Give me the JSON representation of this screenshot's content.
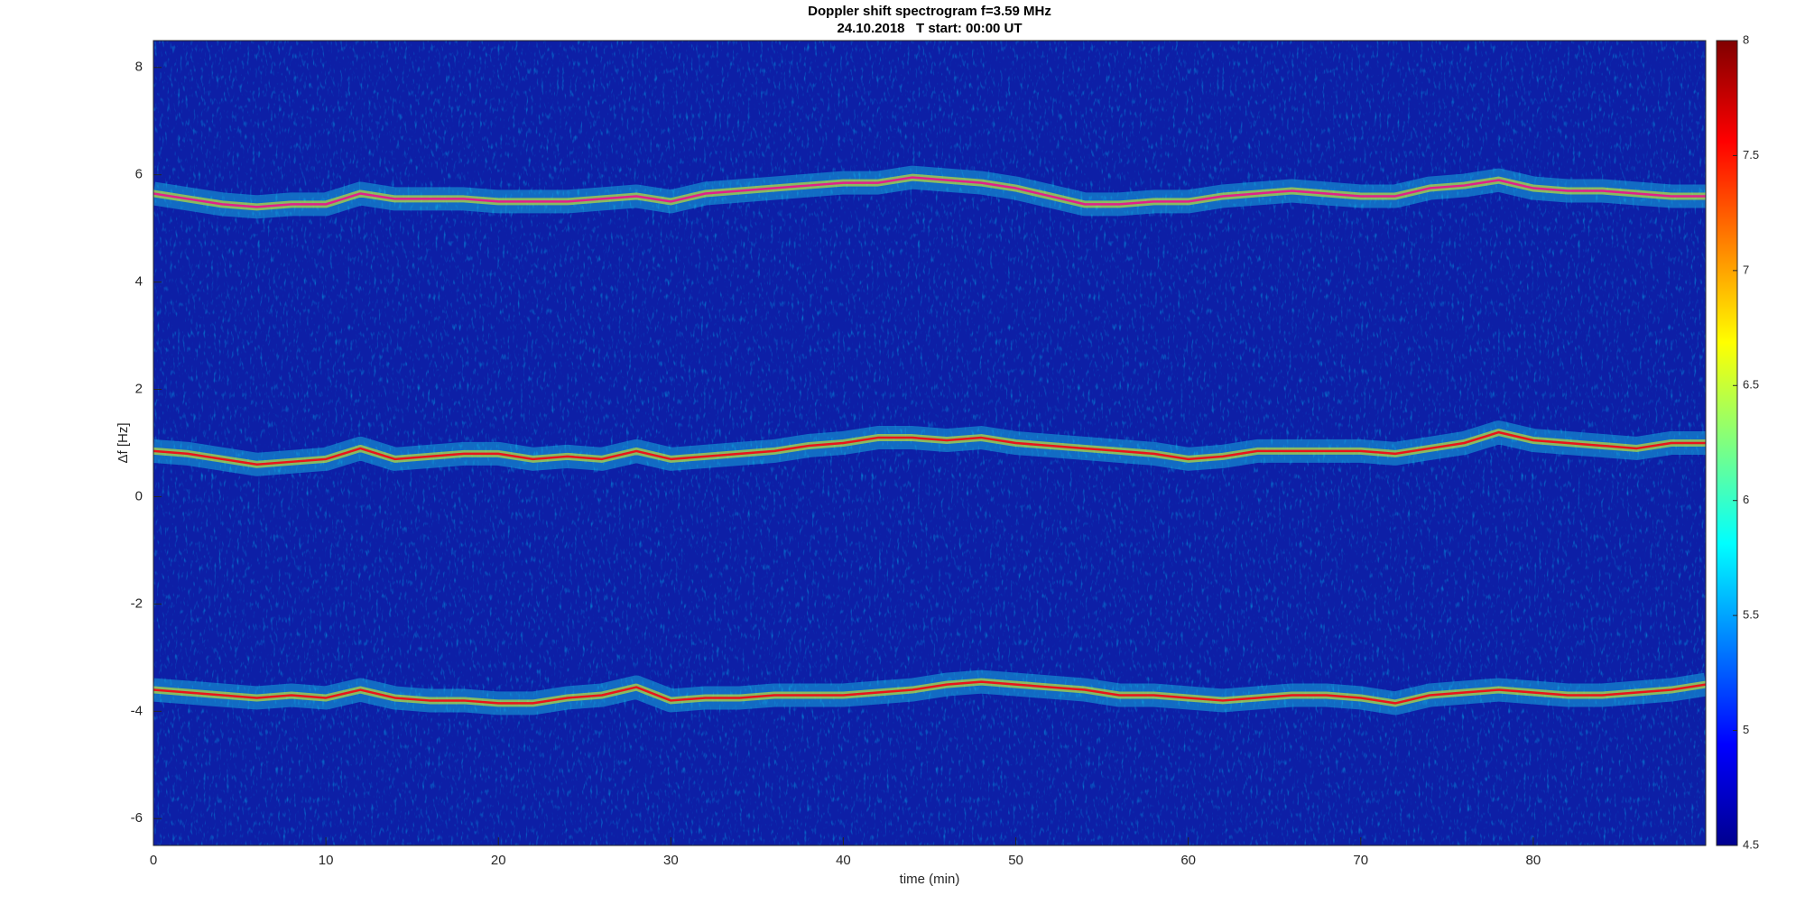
{
  "chart_data": {
    "type": "spectrogram",
    "title": "Doppler shift spectrogram f=3.59 MHz",
    "subtitle": "24.10.2018   T start: 00:00 UT",
    "xlabel": "time (min)",
    "ylabel": "Δf [Hz]",
    "xlim": [
      0,
      90
    ],
    "xticks": [
      0,
      10,
      20,
      30,
      40,
      50,
      60,
      70,
      80
    ],
    "ylim": [
      -6.5,
      8.5
    ],
    "yticks": [
      -6,
      -4,
      -2,
      0,
      2,
      4,
      6,
      8
    ],
    "clim": [
      4.5,
      8
    ],
    "cticks": [
      4.5,
      5,
      5.5,
      6,
      6.5,
      7,
      7.5,
      8
    ],
    "colormap": "jet",
    "background_color": "#0d1fa6",
    "x": [
      0,
      2,
      4,
      6,
      8,
      10,
      12,
      14,
      16,
      18,
      20,
      22,
      24,
      26,
      28,
      30,
      32,
      34,
      36,
      38,
      40,
      42,
      44,
      46,
      48,
      50,
      52,
      54,
      56,
      58,
      60,
      62,
      64,
      66,
      68,
      70,
      72,
      74,
      76,
      78,
      80,
      82,
      84,
      86,
      88,
      90
    ],
    "series": [
      {
        "color": "#e0208c",
        "values": [
          5.65,
          5.55,
          5.45,
          5.4,
          5.45,
          5.45,
          5.65,
          5.55,
          5.55,
          5.55,
          5.5,
          5.5,
          5.5,
          5.55,
          5.6,
          5.5,
          5.65,
          5.7,
          5.75,
          5.8,
          5.85,
          5.85,
          5.95,
          5.9,
          5.85,
          5.75,
          5.6,
          5.45,
          5.45,
          5.5,
          5.5,
          5.6,
          5.65,
          5.7,
          5.65,
          5.6,
          5.6,
          5.75,
          5.8,
          5.9,
          5.75,
          5.7,
          5.7,
          5.65,
          5.6,
          5.6
        ]
      },
      {
        "color": "#e8141c",
        "values": [
          0.85,
          0.8,
          0.7,
          0.6,
          0.65,
          0.7,
          0.9,
          0.7,
          0.75,
          0.8,
          0.8,
          0.7,
          0.75,
          0.7,
          0.85,
          0.7,
          0.75,
          0.8,
          0.85,
          0.95,
          1.0,
          1.1,
          1.1,
          1.05,
          1.1,
          1.0,
          0.95,
          0.9,
          0.85,
          0.8,
          0.7,
          0.75,
          0.85,
          0.85,
          0.85,
          0.85,
          0.8,
          0.9,
          1.0,
          1.2,
          1.05,
          1.0,
          0.95,
          0.9,
          1.0,
          1.0
        ]
      },
      {
        "color": "#e8141c",
        "values": [
          -3.6,
          -3.65,
          -3.7,
          -3.75,
          -3.7,
          -3.75,
          -3.6,
          -3.75,
          -3.8,
          -3.8,
          -3.85,
          -3.85,
          -3.75,
          -3.7,
          -3.55,
          -3.8,
          -3.75,
          -3.75,
          -3.7,
          -3.7,
          -3.7,
          -3.65,
          -3.6,
          -3.5,
          -3.45,
          -3.5,
          -3.55,
          -3.6,
          -3.7,
          -3.7,
          -3.75,
          -3.8,
          -3.75,
          -3.7,
          -3.7,
          -3.75,
          -3.85,
          -3.7,
          -3.65,
          -3.6,
          -3.65,
          -3.7,
          -3.7,
          -3.65,
          -3.6,
          -3.5
        ]
      }
    ]
  }
}
